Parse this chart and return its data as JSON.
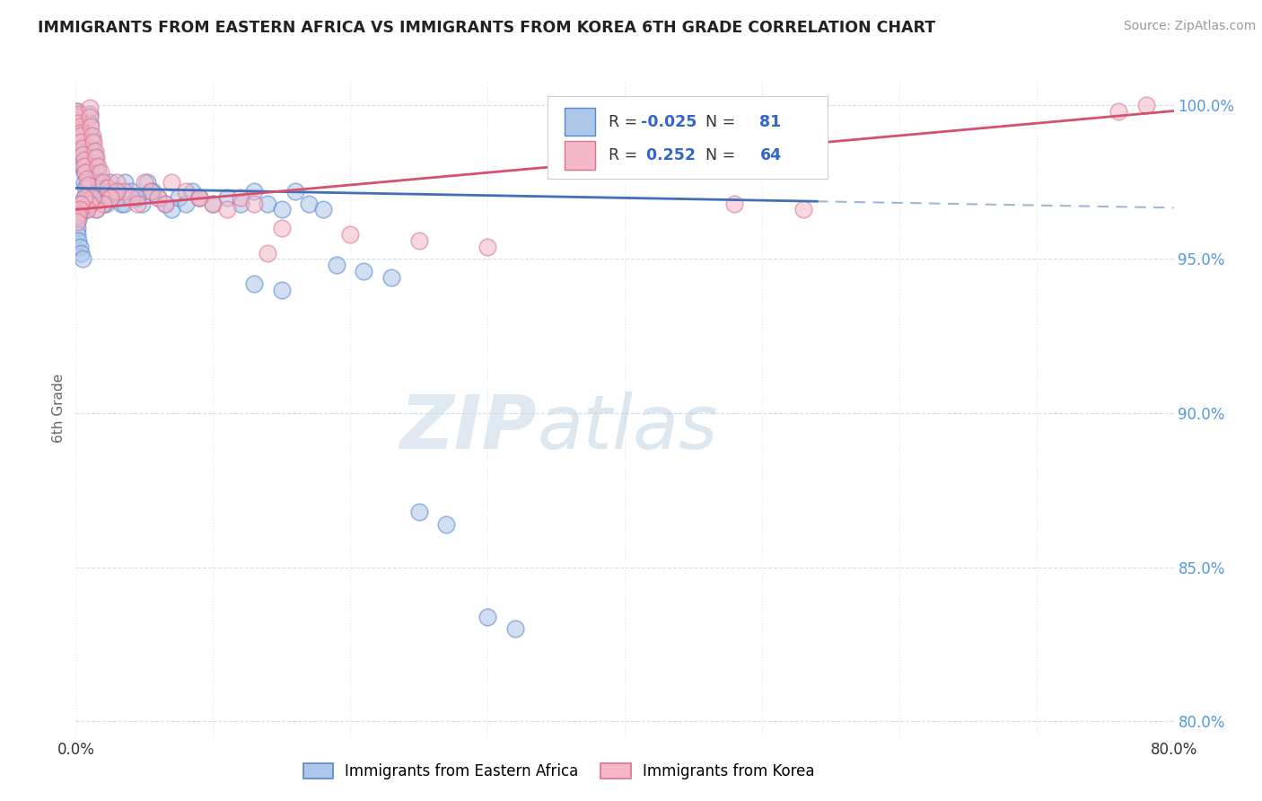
{
  "title": "IMMIGRANTS FROM EASTERN AFRICA VS IMMIGRANTS FROM KOREA 6TH GRADE CORRELATION CHART",
  "source": "Source: ZipAtlas.com",
  "ylabel": "6th Grade",
  "watermark_zip": "ZIP",
  "watermark_atlas": "atlas",
  "r_blue": -0.025,
  "n_blue": 81,
  "r_pink": 0.252,
  "n_pink": 64,
  "blue_fill": "#aec6e8",
  "pink_fill": "#f4b8c8",
  "blue_edge": "#5588cc",
  "pink_edge": "#e07090",
  "blue_line_color": "#4070b8",
  "pink_line_color": "#d85070",
  "xlim": [
    0.0,
    0.8
  ],
  "ylim": [
    0.795,
    1.008
  ],
  "yticks": [
    0.8,
    0.85,
    0.9,
    0.95,
    1.0
  ],
  "ytick_labels": [
    "80.0%",
    "85.0%",
    "90.0%",
    "95.0%",
    "100.0%"
  ],
  "xticks": [
    0.0,
    0.1,
    0.2,
    0.3,
    0.4,
    0.5,
    0.6,
    0.7,
    0.8
  ],
  "xtick_labels": [
    "0.0%",
    "",
    "",
    "",
    "",
    "",
    "",
    "",
    "80.0%"
  ],
  "blue_x": [
    0.001,
    0.001,
    0.002,
    0.002,
    0.003,
    0.003,
    0.004,
    0.004,
    0.005,
    0.005,
    0.006,
    0.006,
    0.007,
    0.008,
    0.009,
    0.01,
    0.01,
    0.011,
    0.012,
    0.013,
    0.014,
    0.015,
    0.016,
    0.017,
    0.018,
    0.02,
    0.022,
    0.025,
    0.028,
    0.03,
    0.033,
    0.036,
    0.04,
    0.044,
    0.048,
    0.052,
    0.056,
    0.06,
    0.065,
    0.07,
    0.075,
    0.08,
    0.085,
    0.09,
    0.1,
    0.11,
    0.12,
    0.13,
    0.14,
    0.15,
    0.16,
    0.17,
    0.18,
    0.055,
    0.045,
    0.035,
    0.025,
    0.02,
    0.015,
    0.012,
    0.01,
    0.008,
    0.006,
    0.004,
    0.003,
    0.002,
    0.001,
    0.001,
    0.002,
    0.003,
    0.004,
    0.005,
    0.19,
    0.21,
    0.23,
    0.13,
    0.15,
    0.25,
    0.27,
    0.3,
    0.32
  ],
  "blue_y": [
    0.998,
    0.995,
    0.996,
    0.993,
    0.992,
    0.99,
    0.988,
    0.985,
    0.984,
    0.98,
    0.978,
    0.975,
    0.973,
    0.97,
    0.968,
    0.997,
    0.994,
    0.99,
    0.988,
    0.985,
    0.983,
    0.98,
    0.978,
    0.975,
    0.972,
    0.97,
    0.968,
    0.975,
    0.972,
    0.97,
    0.968,
    0.975,
    0.972,
    0.97,
    0.968,
    0.975,
    0.972,
    0.97,
    0.968,
    0.966,
    0.97,
    0.968,
    0.972,
    0.97,
    0.968,
    0.97,
    0.968,
    0.972,
    0.968,
    0.966,
    0.972,
    0.968,
    0.966,
    0.972,
    0.97,
    0.968,
    0.972,
    0.968,
    0.966,
    0.97,
    0.968,
    0.966,
    0.97,
    0.968,
    0.965,
    0.963,
    0.96,
    0.958,
    0.956,
    0.954,
    0.952,
    0.95,
    0.948,
    0.946,
    0.944,
    0.942,
    0.94,
    0.868,
    0.864,
    0.834,
    0.83
  ],
  "pink_x": [
    0.001,
    0.001,
    0.002,
    0.002,
    0.003,
    0.003,
    0.004,
    0.004,
    0.005,
    0.005,
    0.006,
    0.006,
    0.007,
    0.008,
    0.009,
    0.01,
    0.01,
    0.011,
    0.012,
    0.013,
    0.014,
    0.015,
    0.016,
    0.018,
    0.02,
    0.023,
    0.026,
    0.03,
    0.035,
    0.04,
    0.045,
    0.05,
    0.055,
    0.06,
    0.065,
    0.07,
    0.08,
    0.09,
    0.1,
    0.11,
    0.12,
    0.13,
    0.03,
    0.025,
    0.02,
    0.015,
    0.012,
    0.01,
    0.008,
    0.006,
    0.004,
    0.003,
    0.002,
    0.001,
    0.15,
    0.2,
    0.25,
    0.3,
    0.14,
    0.09,
    0.48,
    0.53,
    0.76,
    0.78
  ],
  "pink_y": [
    0.998,
    0.996,
    0.997,
    0.994,
    0.993,
    0.991,
    0.99,
    0.988,
    0.986,
    0.984,
    0.982,
    0.98,
    0.978,
    0.976,
    0.974,
    0.999,
    0.996,
    0.993,
    0.99,
    0.988,
    0.985,
    0.983,
    0.98,
    0.978,
    0.975,
    0.973,
    0.97,
    0.975,
    0.972,
    0.97,
    0.968,
    0.975,
    0.972,
    0.97,
    0.968,
    0.975,
    0.972,
    0.97,
    0.968,
    0.966,
    0.97,
    0.968,
    0.972,
    0.97,
    0.968,
    0.966,
    0.97,
    0.968,
    0.966,
    0.97,
    0.968,
    0.966,
    0.964,
    0.962,
    0.96,
    0.958,
    0.956,
    0.954,
    0.952,
    0.97,
    0.968,
    0.966,
    0.998,
    1.0
  ]
}
